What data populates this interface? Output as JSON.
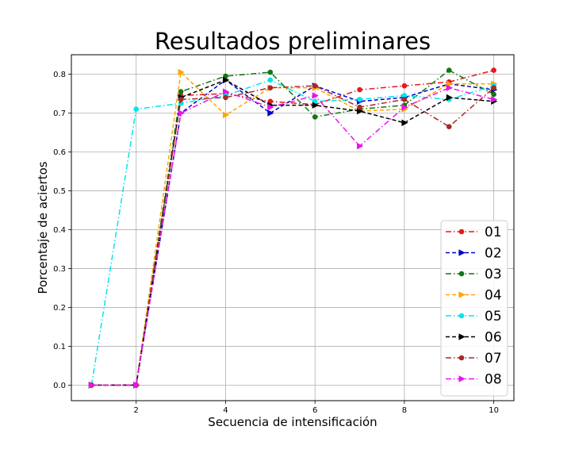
{
  "chart_data": {
    "type": "line",
    "title": "Resultados preliminares",
    "xlabel": "Secuencia de intensificación",
    "ylabel": "Porcentaje de aciertos",
    "xlim": [
      0.55,
      10.45
    ],
    "ylim": [
      -0.04,
      0.85
    ],
    "xticks": [
      2,
      4,
      6,
      8,
      10
    ],
    "yticks": [
      0.0,
      0.1,
      0.2,
      0.3,
      0.4,
      0.5,
      0.6,
      0.7,
      0.8
    ],
    "xtick_labels": [
      "2",
      "4",
      "6",
      "8",
      "10"
    ],
    "ytick_labels": [
      "0.0",
      "0.1",
      "0.2",
      "0.3",
      "0.4",
      "0.5",
      "0.6",
      "0.7",
      "0.8"
    ],
    "grid": true,
    "legend_position": "lower-right",
    "x": [
      1,
      2,
      3,
      4,
      5,
      6,
      7,
      8,
      9,
      10
    ],
    "series": [
      {
        "name": "01",
        "color": "#e41a1c",
        "dash": "dashdot",
        "marker": "circle",
        "values": [
          0.0,
          0.0,
          0.745,
          0.75,
          0.73,
          0.722,
          0.76,
          0.77,
          0.78,
          0.81
        ]
      },
      {
        "name": "02",
        "color": "#0000cc",
        "dash": "dashed",
        "marker": "triangle",
        "values": [
          0.0,
          0.0,
          0.7,
          0.785,
          0.7,
          0.77,
          0.73,
          0.74,
          0.775,
          0.76
        ]
      },
      {
        "name": "03",
        "color": "#117711",
        "dash": "dashdot",
        "marker": "circle",
        "values": [
          0.0,
          0.0,
          0.755,
          0.795,
          0.805,
          0.69,
          0.71,
          0.72,
          0.81,
          0.748
        ]
      },
      {
        "name": "04",
        "color": "#ffa500",
        "dash": "dashed",
        "marker": "triangle",
        "values": [
          0.0,
          0.0,
          0.805,
          0.695,
          0.765,
          0.765,
          0.705,
          0.71,
          0.775,
          0.775
        ]
      },
      {
        "name": "05",
        "color": "#00e5ee",
        "dash": "dashdot",
        "marker": "circle",
        "values": [
          0.0,
          0.71,
          0.725,
          0.745,
          0.785,
          0.73,
          0.735,
          0.745,
          0.735,
          0.77
        ]
      },
      {
        "name": "06",
        "color": "#000000",
        "dash": "dashed",
        "marker": "triangle",
        "values": [
          0.0,
          0.0,
          0.74,
          0.785,
          0.72,
          0.72,
          0.705,
          0.675,
          0.74,
          0.73
        ]
      },
      {
        "name": "07",
        "color": "#a52a2a",
        "dash": "dashdot",
        "marker": "circle",
        "values": [
          0.0,
          0.0,
          0.735,
          0.74,
          0.765,
          0.77,
          0.715,
          0.735,
          0.665,
          0.765
        ]
      },
      {
        "name": "08",
        "color": "#ee11ee",
        "dash": "dashdot",
        "marker": "triangle",
        "values": [
          0.0,
          0.0,
          0.7,
          0.755,
          0.715,
          0.745,
          0.615,
          0.715,
          0.765,
          0.735
        ]
      }
    ]
  }
}
